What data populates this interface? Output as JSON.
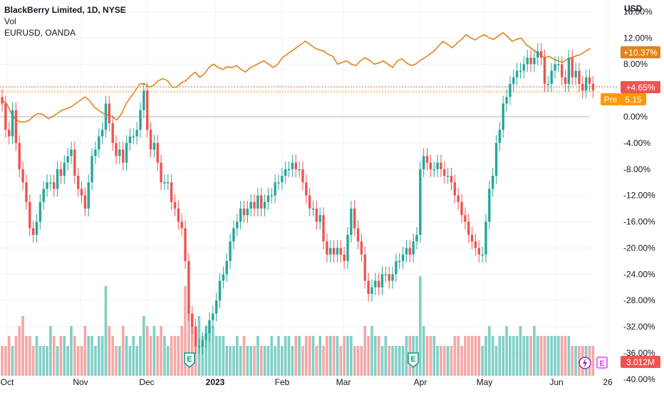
{
  "legend": {
    "title": "BlackBerry Limited, 1D, NYSE",
    "vol": "Vol",
    "compare": "EURUSD, OANDA"
  },
  "currency": "USD",
  "badges": {
    "compare_pct": "+10.37%",
    "price_pct": "+4.65%",
    "pre_label": "Pre",
    "pre_value": "5.15",
    "volume": "3.012M",
    "earnings": "E",
    "dividend": "E"
  },
  "colors": {
    "up": "#26a69a",
    "down": "#ef5350",
    "up_vol": "#7fcfc6",
    "down_vol": "#f4a7a6",
    "compare": "#e2831a",
    "pre": "#ff9800"
  },
  "chart_data": {
    "type": "candlestick",
    "x_tick_labels": [
      "Oct",
      "Nov",
      "Dec",
      "2023",
      "Feb",
      "Mar",
      "Apr",
      "May",
      "Jun",
      "26"
    ],
    "y_tick_labels": [
      "16.00%",
      "12.00%",
      "8.00%",
      "4.00%",
      "0.00%",
      "-4.00%",
      "-8.00%",
      "-12.00%",
      "-16.00%",
      "-20.00%",
      "-24.00%",
      "-28.00%",
      "-32.00%",
      "-36.00%",
      "-40.00%"
    ],
    "ylim": [
      -40,
      16
    ],
    "y_unit": "%",
    "series": [
      {
        "name": "BlackBerry Limited, 1D, NYSE",
        "kind": "candles",
        "closes_pct": [
          2,
          -2,
          -3,
          1,
          -4,
          -8,
          -10,
          -13,
          -17,
          -18,
          -16,
          -13,
          -11,
          -10,
          -10,
          -11,
          -8,
          -9,
          -7,
          -6,
          -5,
          -9,
          -11,
          -12,
          -14,
          -10,
          -6,
          -5,
          -3,
          -2,
          2,
          -1,
          -4,
          -6,
          -5,
          -7,
          -4,
          -3,
          -3,
          -2,
          1,
          4,
          -2,
          -5,
          -4,
          -7,
          -10,
          -10,
          -10,
          -13,
          -14,
          -16,
          -17,
          -22,
          -30,
          -32,
          -35,
          -35,
          -34,
          -33,
          -31,
          -30,
          -28,
          -25,
          -24,
          -22,
          -19,
          -17,
          -16,
          -14,
          -15,
          -14,
          -13,
          -14,
          -12,
          -14,
          -13,
          -12,
          -12,
          -10,
          -10,
          -9,
          -8,
          -8,
          -7,
          -8,
          -8,
          -10,
          -12,
          -14,
          -14,
          -16,
          -15,
          -19,
          -21,
          -20,
          -21,
          -20,
          -21,
          -22,
          -18,
          -14,
          -17,
          -19,
          -21,
          -25,
          -27,
          -26,
          -25,
          -26,
          -24,
          -24,
          -25,
          -24,
          -22,
          -22,
          -21,
          -20,
          -21,
          -19,
          -18,
          -8,
          -6,
          -7,
          -8,
          -8,
          -7,
          -8,
          -9,
          -9,
          -10,
          -12,
          -13,
          -15,
          -16,
          -18,
          -19,
          -20,
          -21,
          -21,
          -16,
          -11,
          -9,
          -4,
          -2,
          2,
          3,
          5,
          6,
          7,
          7,
          8,
          9,
          8,
          9,
          10,
          9,
          5,
          5,
          7,
          8,
          8,
          6,
          5,
          9,
          6,
          7,
          5,
          4,
          6,
          5,
          4
        ],
        "last_change": "+4.65%"
      },
      {
        "name": "EURUSD, OANDA",
        "kind": "line",
        "values_pct": [
          2.5,
          2.0,
          0.5,
          -0.5,
          -0.8,
          -0.8,
          -0.5,
          0.2,
          0.5,
          0.3,
          -0.3,
          0.0,
          0.5,
          1.0,
          1.2,
          1.5,
          2.0,
          2.5,
          3.0,
          2.5,
          1.5,
          1.0,
          0.5,
          0.3,
          0.0,
          -0.5,
          0.5,
          2.0,
          3.0,
          4.0,
          5.0,
          5.0,
          4.5,
          4.8,
          5.5,
          5.8,
          5.5,
          4.5,
          4.5,
          5.2,
          5.5,
          6.2,
          6.8,
          6.0,
          6.5,
          7.5,
          8.0,
          7.5,
          7.2,
          7.6,
          7.5,
          7.8,
          7.2,
          6.8,
          7.5,
          7.8,
          8.2,
          8.5,
          8.0,
          7.5,
          8.0,
          9.0,
          9.5,
          10.0,
          10.5,
          11.0,
          11.5,
          11.0,
          10.5,
          10.2,
          10.0,
          9.5,
          9.2,
          8.0,
          8.3,
          8.5,
          8.0,
          7.8,
          8.5,
          9.0,
          8.6,
          8.0,
          8.2,
          8.5,
          8.0,
          7.5,
          8.5,
          8.8,
          8.2,
          7.8,
          8.0,
          8.6,
          9.0,
          9.5,
          10.0,
          10.8,
          11.5,
          11.0,
          10.5,
          11.2,
          11.8,
          12.5,
          12.0,
          11.7,
          12.2,
          12.5,
          12.0,
          11.8,
          12.3,
          12.8,
          12.2,
          11.5,
          11.8,
          12.0,
          11.0,
          10.5,
          10.0,
          9.5,
          9.0,
          9.2,
          8.8,
          8.5,
          8.3,
          8.8,
          9.0,
          9.3,
          9.5,
          10.0,
          10.4
        ],
        "last_change": "+10.37%"
      },
      {
        "name": "Vol",
        "kind": "volume",
        "values_million": [
          3,
          3,
          4,
          3,
          4,
          5,
          6,
          4,
          4,
          3,
          4,
          3,
          3,
          3,
          5,
          4,
          3,
          4,
          4,
          3,
          5,
          4,
          3,
          3,
          5,
          4,
          4,
          3,
          4,
          4,
          9,
          5,
          4,
          3,
          3,
          5,
          4,
          3,
          4,
          3,
          4,
          6,
          5,
          4,
          5,
          4,
          5,
          4,
          3,
          4,
          4,
          4,
          5,
          9,
          7,
          6,
          5,
          6,
          4,
          5,
          5,
          5,
          4,
          4,
          4,
          3,
          3,
          3,
          4,
          3,
          4,
          3,
          3,
          3,
          4,
          3,
          3,
          3,
          4,
          3,
          4,
          3,
          4,
          4,
          3,
          4,
          4,
          3,
          4,
          4,
          4,
          3,
          4,
          3,
          4,
          4,
          4,
          4,
          3,
          4,
          4,
          4,
          3,
          3,
          3,
          5,
          4,
          5,
          4,
          4,
          3,
          4,
          3,
          3,
          3,
          3,
          3,
          4,
          4,
          4,
          4,
          10,
          5,
          4,
          4,
          4,
          3,
          3,
          3,
          3,
          3,
          4,
          4,
          3,
          4,
          4,
          4,
          4,
          4,
          3,
          4,
          5,
          4,
          3,
          4,
          4,
          5,
          4,
          4,
          4,
          5,
          4,
          4,
          4,
          5,
          4,
          4,
          4,
          4,
          4,
          4,
          4,
          4,
          4,
          4,
          3,
          3,
          3,
          3,
          3,
          3
        ]
      }
    ],
    "annotations": [
      "E",
      "E",
      "Pre 5.15"
    ]
  }
}
